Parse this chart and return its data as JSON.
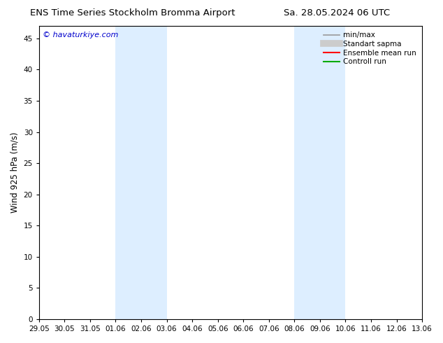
{
  "title_left": "ENS Time Series Stockholm Bromma Airport",
  "title_right": "Sa. 28.05.2024 06 UTC",
  "ylabel": "Wind 925 hPa (m/s)",
  "watermark": "© havaturkiye.com",
  "watermark_color": "#0000cc",
  "background_color": "#ffffff",
  "plot_bg_color": "#ffffff",
  "ylim": [
    0,
    47
  ],
  "yticks": [
    0,
    5,
    10,
    15,
    20,
    25,
    30,
    35,
    40,
    45
  ],
  "xtick_labels": [
    "29.05",
    "30.05",
    "31.05",
    "01.06",
    "02.06",
    "03.06",
    "04.06",
    "05.06",
    "06.06",
    "07.06",
    "08.06",
    "09.06",
    "10.06",
    "11.06",
    "12.06",
    "13.06"
  ],
  "xtick_values": [
    0,
    1,
    2,
    3,
    4,
    5,
    6,
    7,
    8,
    9,
    10,
    11,
    12,
    13,
    14,
    15
  ],
  "shaded_bands": [
    {
      "x_start": 3,
      "x_end": 5,
      "color": "#ddeeff"
    },
    {
      "x_start": 10,
      "x_end": 12,
      "color": "#ddeeff"
    }
  ],
  "legend_items": [
    {
      "label": "min/max",
      "color": "#999999",
      "lw": 1.2,
      "ls": "-",
      "type": "line"
    },
    {
      "label": "Standart sapma",
      "color": "#cccccc",
      "lw": 7,
      "ls": "-",
      "type": "line"
    },
    {
      "label": "Ensemble mean run",
      "color": "#ff0000",
      "lw": 1.5,
      "ls": "-",
      "type": "line"
    },
    {
      "label": "Controll run",
      "color": "#00aa00",
      "lw": 1.5,
      "ls": "-",
      "type": "line"
    }
  ],
  "spine_color": "#000000",
  "title_fontsize": 9.5,
  "label_fontsize": 8.5,
  "tick_fontsize": 7.5,
  "legend_fontsize": 7.5
}
